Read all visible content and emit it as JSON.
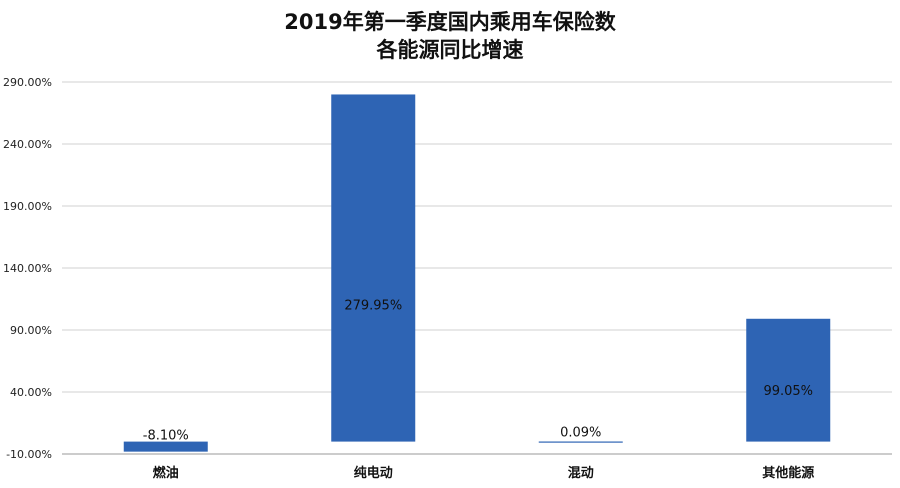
{
  "chart_data": {
    "type": "bar",
    "title_lines": [
      "2019年第一季度国内乘用车保险数",
      "各能源同比增速"
    ],
    "categories": [
      "燃油",
      "纯电动",
      "混动",
      "其他能源"
    ],
    "values": [
      -8.1,
      279.95,
      0.09,
      99.05
    ],
    "data_labels": [
      "-8.10%",
      "279.95%",
      "0.09%",
      "99.05%"
    ],
    "ylim": [
      -10,
      290
    ],
    "yticks": [
      -10,
      40,
      90,
      140,
      190,
      240,
      290
    ],
    "ytick_labels": [
      "-10.00%",
      "40.00%",
      "90.00%",
      "140.00%",
      "190.00%",
      "240.00%",
      "290.00%"
    ],
    "xlabel": "",
    "ylabel": "",
    "grid": true,
    "bar_color": "#2e64b4",
    "grid_color": "#d0d0d0",
    "axis_color": "#9a9a9a"
  }
}
